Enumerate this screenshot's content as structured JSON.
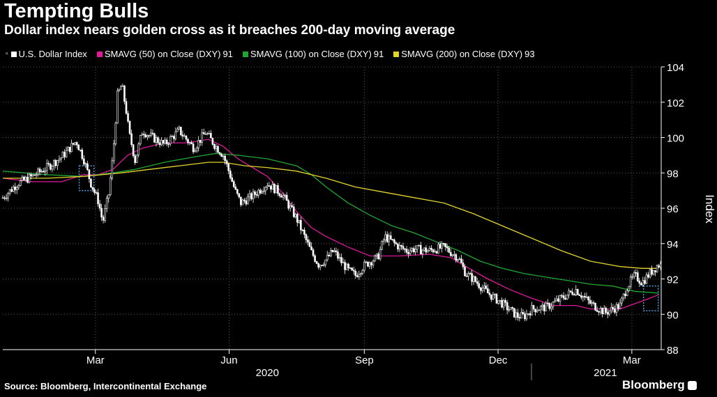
{
  "header": {
    "title": "Tempting Bulls",
    "subtitle": "Dollar index nears golden cross as it breaches 200-day moving average"
  },
  "footer": {
    "source": "Source: Bloomberg, Intercontinental Exchange",
    "brand": "Bloomberg"
  },
  "colors": {
    "background": "#000000",
    "price": "#ffffff",
    "sma50": "#e0199a",
    "sma100": "#1fa82f",
    "sma200": "#e3d42c",
    "highlight_box": "#4aa3e8"
  },
  "chart_data": {
    "type": "line",
    "ylabel": "Index",
    "ylim": [
      88,
      104
    ],
    "yticks": [
      88,
      90,
      92,
      94,
      96,
      98,
      100,
      102,
      104
    ],
    "grid": true,
    "legend": "top-left",
    "x_labels": [
      {
        "label": "Mar",
        "t": 63
      },
      {
        "label": "Jun",
        "t": 154
      },
      {
        "label": "Sep",
        "t": 246
      },
      {
        "label": "Dec",
        "t": 337
      },
      {
        "label": "Mar",
        "t": 428
      }
    ],
    "year_labels": [
      {
        "label": "2020",
        "t": 180
      },
      {
        "label": "2021",
        "t": 410
      }
    ],
    "x_range": [
      0,
      448
    ],
    "legend_entries": [
      {
        "name": "U.S. Dollar Index",
        "value": "",
        "color": "#ffffff"
      },
      {
        "name": "SMAVG (50)  on Close (DXY)",
        "value": "91",
        "color": "#e0199a"
      },
      {
        "name": "SMAVG (100)  on Close (DXY)",
        "value": "91",
        "color": "#1fa82f"
      },
      {
        "name": "SMAVG (200)  on Close (DXY)",
        "value": "93",
        "color": "#e3d42c"
      }
    ],
    "series": [
      {
        "name": "U.S. Dollar Index",
        "style": "candles",
        "x": [
          0,
          10,
          20,
          30,
          40,
          50,
          55,
          60,
          65,
          68,
          72,
          75,
          78,
          81,
          84,
          86,
          88,
          90,
          95,
          100,
          110,
          120,
          130,
          138,
          144,
          150,
          155,
          158,
          162,
          170,
          180,
          190,
          200,
          210,
          215,
          220,
          225,
          230,
          235,
          240,
          245,
          250,
          255,
          260,
          265,
          270,
          275,
          280,
          290,
          300,
          310,
          315,
          320,
          330,
          340,
          350,
          355,
          360,
          370,
          380,
          390,
          400,
          410,
          420,
          425,
          430,
          435,
          440,
          446
        ],
        "y": [
          96.6,
          97.4,
          97.8,
          98.3,
          98.9,
          99.8,
          98.8,
          97.4,
          96.4,
          95.2,
          96.8,
          99.0,
          102.4,
          103.0,
          101.5,
          100.2,
          99.5,
          98.7,
          100.4,
          100.1,
          99.6,
          100.4,
          99.4,
          100.3,
          99.6,
          99.0,
          97.8,
          97.0,
          96.3,
          96.7,
          97.4,
          96.8,
          95.4,
          93.5,
          92.8,
          93.1,
          93.6,
          93.0,
          92.5,
          92.2,
          92.7,
          93.0,
          93.2,
          94.4,
          94.1,
          93.8,
          93.6,
          93.7,
          93.6,
          93.8,
          93.2,
          92.3,
          92.0,
          91.2,
          90.6,
          89.9,
          89.9,
          90.3,
          90.4,
          90.9,
          91.4,
          90.6,
          90.1,
          90.5,
          91.6,
          92.2,
          91.8,
          92.3,
          92.8
        ]
      },
      {
        "name": "SMAVG (50)  on Close (DXY)",
        "x": [
          0,
          20,
          40,
          55,
          65,
          75,
          85,
          95,
          110,
          125,
          140,
          150,
          160,
          170,
          180,
          190,
          200,
          210,
          220,
          235,
          250,
          270,
          290,
          305,
          315,
          330,
          345,
          360,
          375,
          390,
          400,
          410,
          420,
          430,
          440,
          446
        ],
        "y": [
          97.7,
          97.5,
          97.5,
          97.9,
          97.9,
          98.2,
          99.0,
          99.4,
          99.7,
          99.7,
          99.9,
          99.5,
          98.8,
          98.3,
          97.8,
          96.9,
          95.8,
          94.9,
          94.4,
          93.8,
          93.3,
          93.3,
          93.4,
          93.2,
          92.7,
          92.0,
          91.4,
          90.9,
          90.5,
          90.5,
          90.3,
          90.3,
          90.3,
          90.6,
          90.9,
          91.1
        ]
      },
      {
        "name": "SMAVG (100)  on Close (DXY)",
        "x": [
          0,
          30,
          55,
          75,
          90,
          110,
          130,
          145,
          160,
          180,
          200,
          210,
          220,
          235,
          250,
          265,
          280,
          295,
          310,
          325,
          340,
          355,
          370,
          385,
          400,
          415,
          430,
          446
        ],
        "y": [
          98.1,
          97.9,
          97.8,
          98.0,
          98.2,
          98.6,
          98.9,
          99.1,
          99.0,
          98.8,
          98.4,
          97.9,
          97.2,
          96.3,
          95.6,
          95.0,
          94.6,
          94.1,
          93.6,
          93.0,
          92.6,
          92.3,
          92.1,
          91.9,
          91.7,
          91.6,
          91.3,
          91.2
        ]
      },
      {
        "name": "SMAVG (200)  on Close (DXY)",
        "x": [
          0,
          30,
          55,
          80,
          100,
          120,
          140,
          150,
          165,
          180,
          200,
          220,
          240,
          260,
          280,
          300,
          320,
          340,
          360,
          380,
          400,
          420,
          435,
          446
        ],
        "y": [
          97.7,
          97.7,
          97.8,
          98.0,
          98.2,
          98.4,
          98.6,
          98.6,
          98.4,
          98.3,
          98.1,
          97.7,
          97.2,
          96.9,
          96.6,
          96.3,
          95.7,
          95.0,
          94.3,
          93.6,
          93.0,
          92.7,
          92.6,
          92.6
        ]
      }
    ],
    "annotations": [
      {
        "type": "dashed-box",
        "x": [
          52,
          62
        ],
        "y": [
          97.0,
          98.4
        ]
      },
      {
        "type": "dashed-box",
        "x": [
          436,
          446
        ],
        "y": [
          90.2,
          91.6
        ]
      }
    ]
  }
}
